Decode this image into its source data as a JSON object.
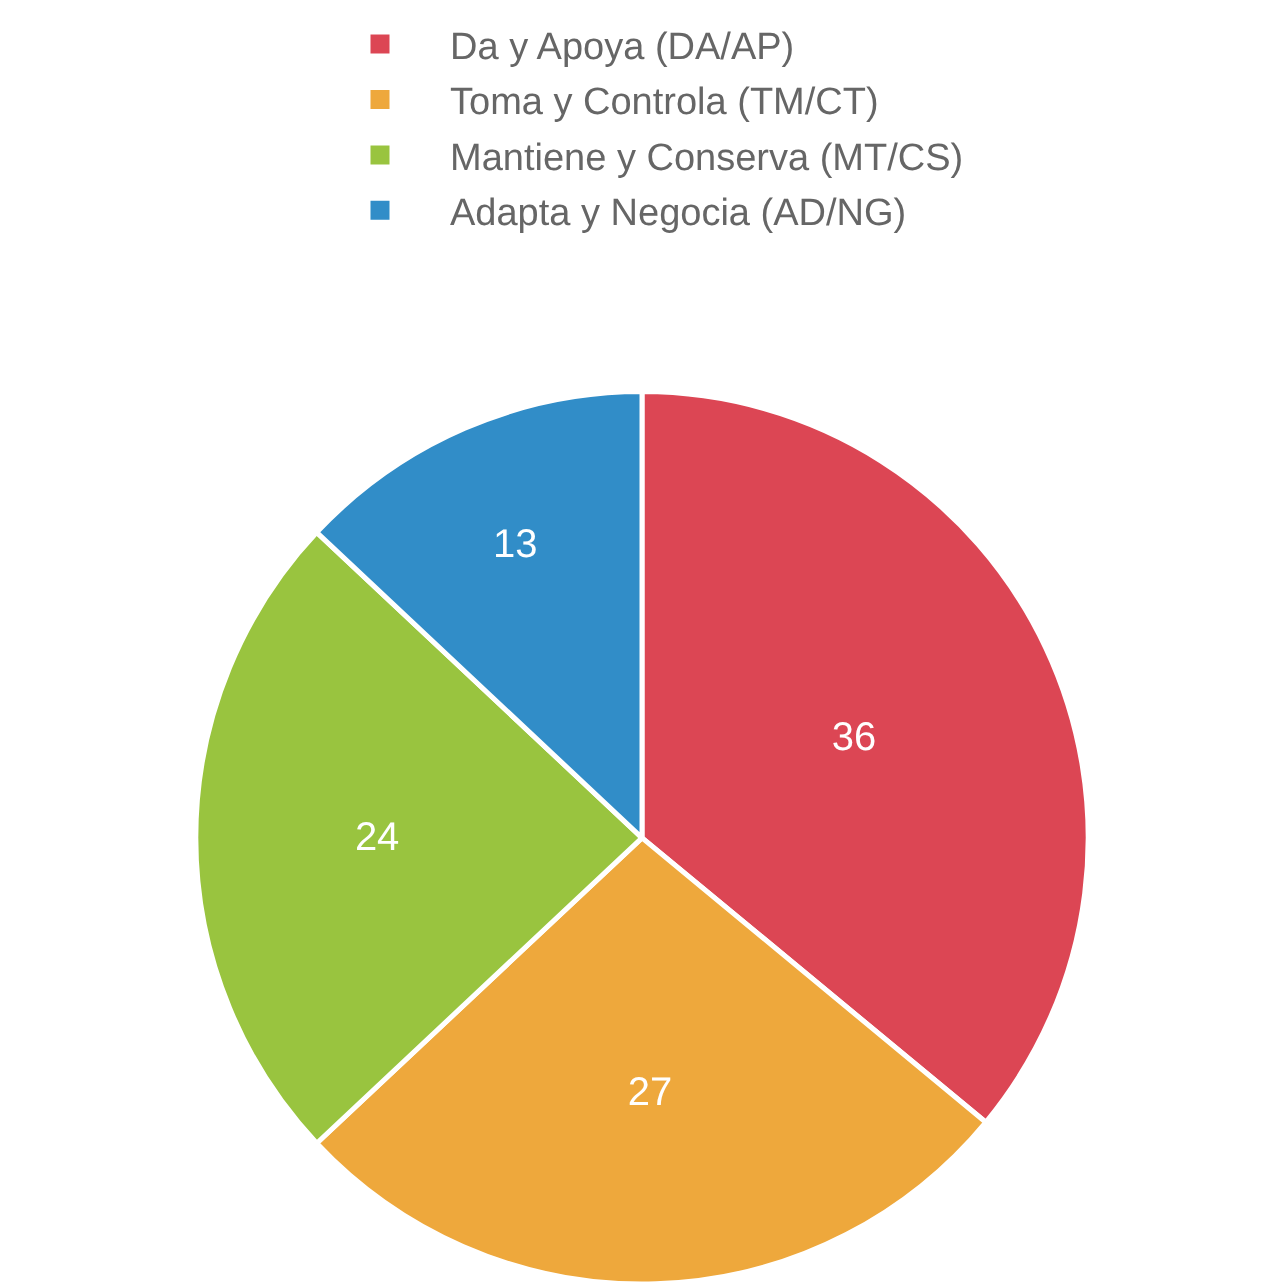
{
  "chart_data": {
    "type": "pie",
    "categories": [
      "Da y Apoya (DA/AP)",
      "Toma y Controla (TM/CT)",
      "Mantiene y Conserva (MT/CS)",
      "Adapta y Negocia (AD/NG)"
    ],
    "values": [
      36,
      27,
      24,
      13
    ],
    "colors": [
      "#dc4654",
      "#eea83c",
      "#99c43f",
      "#318dc8"
    ],
    "data_labels": true,
    "legend": "top"
  }
}
